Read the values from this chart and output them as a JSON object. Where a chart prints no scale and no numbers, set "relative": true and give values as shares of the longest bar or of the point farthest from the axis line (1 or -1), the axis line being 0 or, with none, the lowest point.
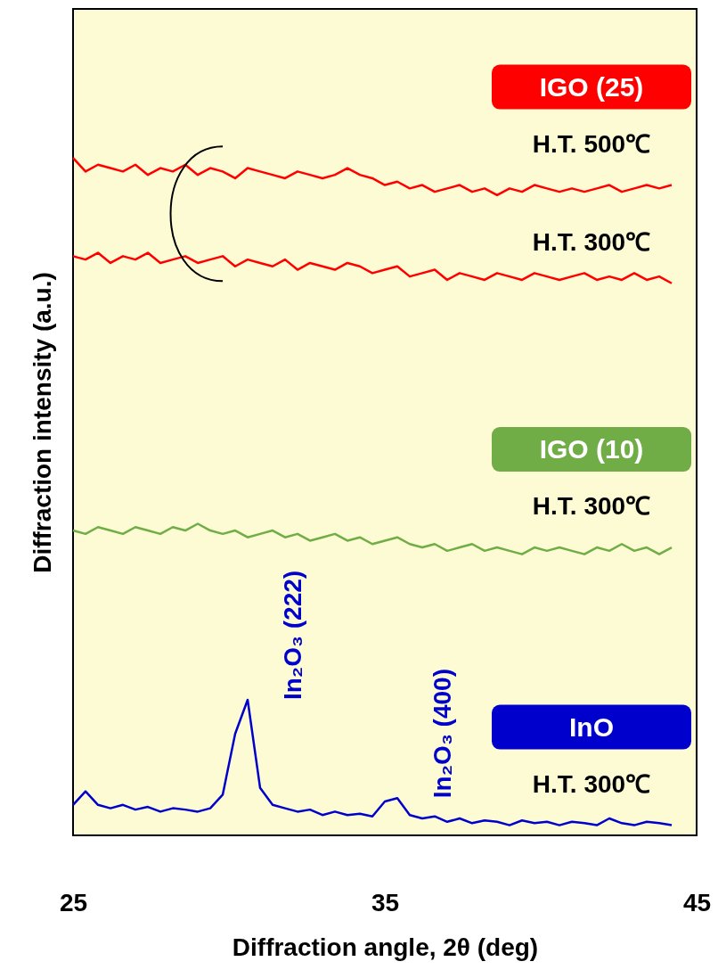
{
  "chart_data": {
    "type": "line",
    "relative": true,
    "xlabel": "Diffraction angle, 2θ  (deg)",
    "ylabel": "Diffraction intensity (a.u.)",
    "xlim": [
      25,
      45
    ],
    "xticks": [
      25,
      35,
      45
    ],
    "x": [
      25,
      25.4,
      25.8,
      26.2,
      26.6,
      27,
      27.4,
      27.8,
      28.2,
      28.6,
      29,
      29.4,
      29.8,
      30.2,
      30.6,
      31,
      31.4,
      31.8,
      32.2,
      32.6,
      33,
      33.4,
      33.8,
      34.2,
      34.6,
      35,
      35.4,
      35.8,
      36.2,
      36.6,
      37,
      37.4,
      37.8,
      38.2,
      38.6,
      39,
      39.4,
      39.8,
      40.2,
      40.6,
      41,
      41.4,
      41.8,
      42.2,
      42.6,
      43,
      43.4,
      43.8,
      44.2
    ],
    "series": [
      {
        "name": "H.T. 500℃",
        "color": "#ff0000",
        "values": [
          1.0,
          0.98,
          0.99,
          0.985,
          0.98,
          0.99,
          0.975,
          0.985,
          0.98,
          0.99,
          0.975,
          0.985,
          0.98,
          0.97,
          0.985,
          0.98,
          0.975,
          0.97,
          0.98,
          0.975,
          0.97,
          0.975,
          0.985,
          0.975,
          0.97,
          0.96,
          0.965,
          0.955,
          0.96,
          0.95,
          0.955,
          0.96,
          0.95,
          0.955,
          0.945,
          0.955,
          0.95,
          0.96,
          0.955,
          0.95,
          0.955,
          0.95,
          0.955,
          0.96,
          0.95,
          0.955,
          0.96,
          0.955,
          0.96
        ]
      },
      {
        "name": "H.T. 300℃",
        "color": "#ff0000",
        "values": [
          0.855,
          0.85,
          0.86,
          0.845,
          0.855,
          0.85,
          0.86,
          0.845,
          0.85,
          0.855,
          0.845,
          0.85,
          0.855,
          0.84,
          0.85,
          0.845,
          0.84,
          0.85,
          0.835,
          0.845,
          0.84,
          0.835,
          0.845,
          0.84,
          0.83,
          0.835,
          0.84,
          0.825,
          0.83,
          0.835,
          0.82,
          0.83,
          0.825,
          0.82,
          0.83,
          0.825,
          0.82,
          0.83,
          0.825,
          0.82,
          0.825,
          0.83,
          0.82,
          0.825,
          0.82,
          0.83,
          0.82,
          0.825,
          0.815
        ]
      },
      {
        "name": "H.T. 300℃",
        "color": "#70ad47",
        "values": [
          0.45,
          0.445,
          0.455,
          0.45,
          0.445,
          0.455,
          0.45,
          0.445,
          0.455,
          0.45,
          0.46,
          0.45,
          0.445,
          0.45,
          0.44,
          0.445,
          0.45,
          0.44,
          0.445,
          0.435,
          0.44,
          0.445,
          0.435,
          0.44,
          0.43,
          0.435,
          0.44,
          0.43,
          0.425,
          0.43,
          0.42,
          0.425,
          0.43,
          0.42,
          0.425,
          0.42,
          0.415,
          0.425,
          0.42,
          0.425,
          0.42,
          0.415,
          0.425,
          0.42,
          0.43,
          0.42,
          0.425,
          0.415,
          0.425
        ]
      },
      {
        "name": "H.T. 300℃",
        "color": "#0000cc",
        "values": [
          0.045,
          0.065,
          0.045,
          0.04,
          0.045,
          0.038,
          0.042,
          0.035,
          0.04,
          0.038,
          0.035,
          0.04,
          0.06,
          0.15,
          0.2,
          0.07,
          0.045,
          0.04,
          0.035,
          0.038,
          0.03,
          0.035,
          0.03,
          0.032,
          0.028,
          0.05,
          0.055,
          0.03,
          0.025,
          0.028,
          0.02,
          0.025,
          0.018,
          0.022,
          0.02,
          0.015,
          0.022,
          0.018,
          0.02,
          0.015,
          0.02,
          0.018,
          0.015,
          0.025,
          0.018,
          0.015,
          0.02,
          0.018,
          0.015
        ]
      }
    ],
    "annotations": [
      "IGO (25)",
      "IGO (10)",
      "InO",
      {
        "text": "In₂O₃  (222)",
        "x": 30.6,
        "y": 0.2
      },
      {
        "text": "In₂O₃  (400)",
        "x": 35.4,
        "y": 0.055
      }
    ]
  }
}
